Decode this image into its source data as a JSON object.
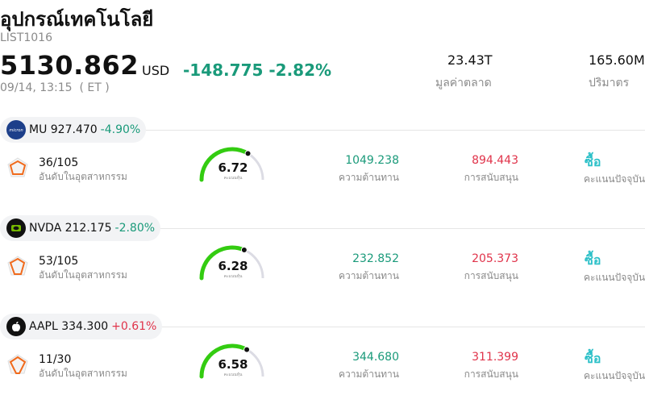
{
  "header": {
    "title": "อุปกรณ์เทคโนโลยี",
    "code": "LIST1016",
    "price": "5130.862",
    "currency": "USD",
    "change": "-148.775 -2.82%",
    "datetime": "09/14, 13:15  ( ET )",
    "market_cap": "23.43T",
    "market_cap_label": "มูลค่าตลาด",
    "volume": "165.60M",
    "volume_label": "ปริมาตร"
  },
  "colors": {
    "negative": "#1a9a7a",
    "positive": "#e0334a",
    "rating": "#2cc0c8",
    "gauge": "#33cc11"
  },
  "stocks": [
    {
      "symbol": "MU 927.470",
      "change": "-4.90%",
      "direction": "neg",
      "logo_icon": "micron-logo-icon",
      "rank": "36/105",
      "rank_label": "อันดับในอุตสาหกรรม",
      "score": "6.72",
      "score_value": 6.72,
      "score_label": "คะแนนหุ้น",
      "resistance": "1049.238",
      "resistance_label": "ความต้านทาน",
      "support": "894.443",
      "support_label": "การสนับสนุน",
      "rating": "ซื้อ",
      "rating_label": "คะแนนปัจจุบัน"
    },
    {
      "symbol": "NVDA 212.175",
      "change": "-2.80%",
      "direction": "neg",
      "logo_icon": "nvidia-logo-icon",
      "rank": "53/105",
      "rank_label": "อันดับในอุตสาหกรรม",
      "score": "6.28",
      "score_value": 6.28,
      "score_label": "คะแนนหุ้น",
      "resistance": "232.852",
      "resistance_label": "ความต้านทาน",
      "support": "205.373",
      "support_label": "การสนับสนุน",
      "rating": "ซื้อ",
      "rating_label": "คะแนนปัจจุบัน"
    },
    {
      "symbol": "AAPL 334.300",
      "change": "+0.61%",
      "direction": "pos",
      "logo_icon": "apple-logo-icon",
      "rank": "11/30",
      "rank_label": "อันดับในอุตสาหกรรม",
      "score": "6.58",
      "score_value": 6.58,
      "score_label": "คะแนนหุ้น",
      "resistance": "344.680",
      "resistance_label": "ความต้านทาน",
      "support": "311.399",
      "support_label": "การสนับสนุน",
      "rating": "ซื้อ",
      "rating_label": "คะแนนปัจจุบัน"
    }
  ]
}
